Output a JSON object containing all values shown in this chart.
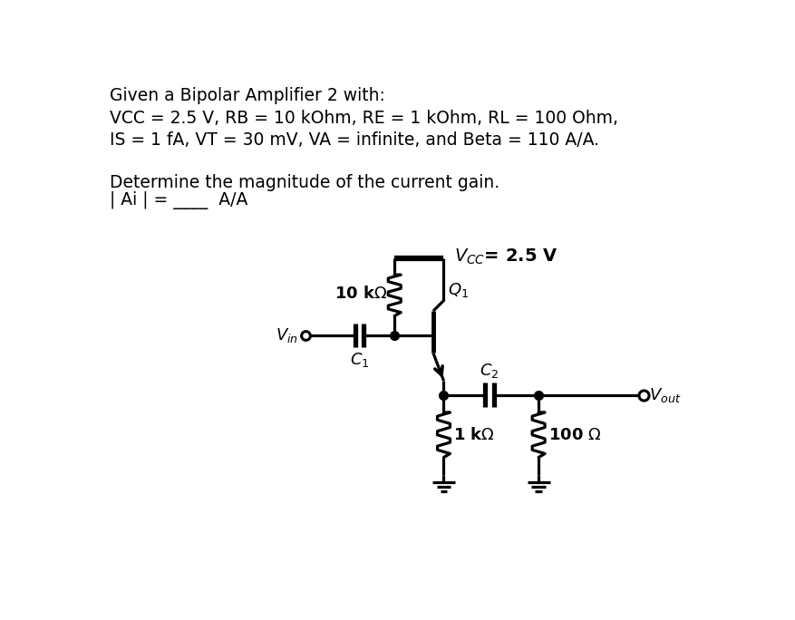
{
  "background_color": "#ffffff",
  "text_color": "#000000",
  "text_lines": [
    "Given a Bipolar Amplifier 2 with:",
    "VCC = 2.5 V, RB = 10 kOhm, RE = 1 kOhm, RL = 100 Ohm,",
    "IS = 1 fA, VT = 30 mV, VA = infinite, and Beta = 110 A/A."
  ],
  "question_lines": [
    "Determine the magnitude of the current gain.",
    "| Ai | = ____  A/A"
  ],
  "vcc_label": "$V_{CC}$= 2.5 V",
  "rb_label": "10 k$\\Omega$",
  "re_label": "1 k$\\Omega$",
  "rl_label": "100 $\\Omega$",
  "q1_label": "$Q_1$",
  "c1_label": "$C_1$",
  "c2_label": "$C_2$",
  "vin_label": "$V_{in}$",
  "vout_label": "$V_{out}$",
  "lw": 2.3,
  "lw_thick": 4.5,
  "lw_cap": 3.8
}
